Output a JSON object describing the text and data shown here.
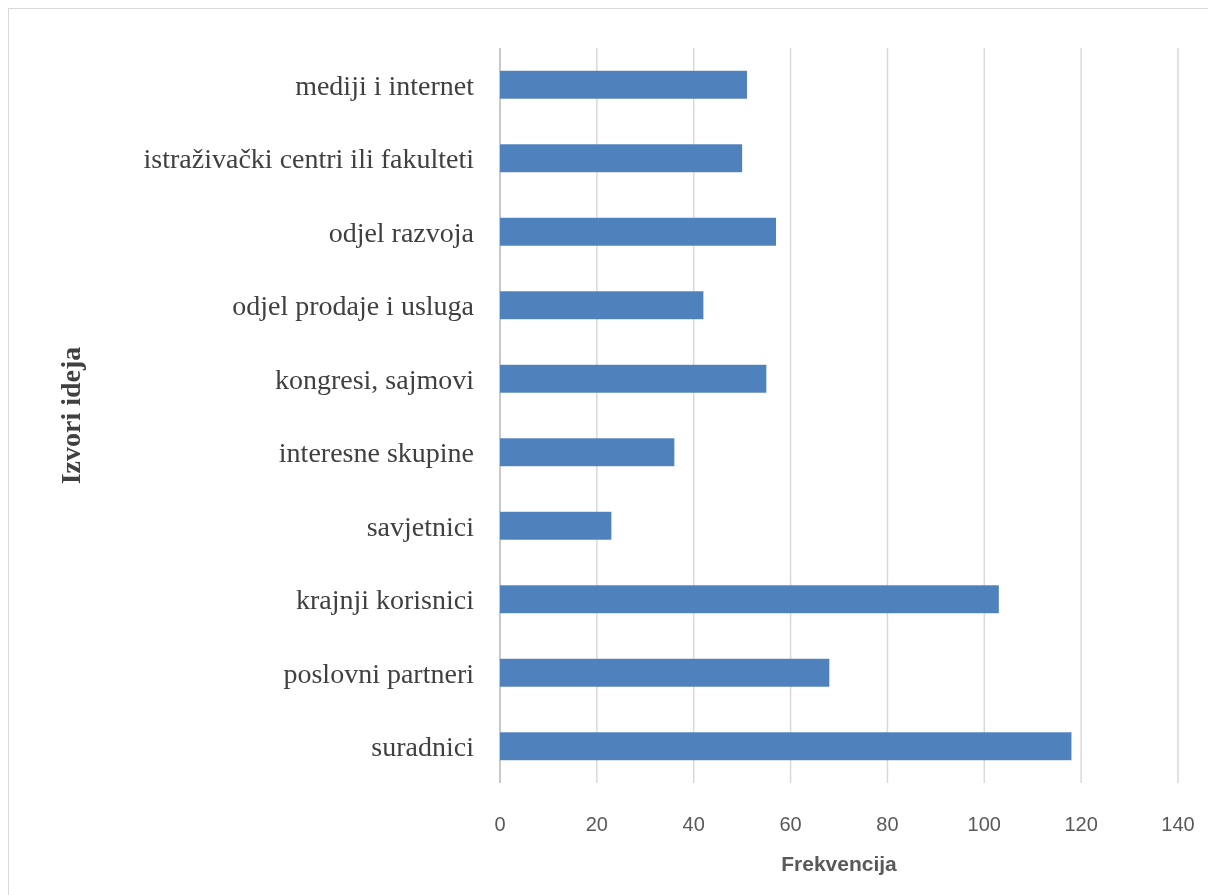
{
  "chart_data": {
    "type": "bar",
    "orientation": "horizontal",
    "xlabel": "Frekvencija",
    "ylabel": "Izvori ideja",
    "categories": [
      "mediji i internet",
      "istraživački centri ili fakulteti",
      "odjel razvoja",
      "odjel prodaje i usluga",
      "kongresi, sajmovi",
      "interesne skupine",
      "savjetnici",
      "krajnji korisnici",
      "poslovni partneri",
      "suradnici"
    ],
    "values": [
      51,
      50,
      57,
      42,
      55,
      36,
      23,
      103,
      68,
      118
    ],
    "color": "#4f81bd",
    "xlim": [
      0,
      140
    ],
    "xticks": [
      0,
      20,
      40,
      60,
      80,
      100,
      120,
      140
    ],
    "grid": "x"
  }
}
